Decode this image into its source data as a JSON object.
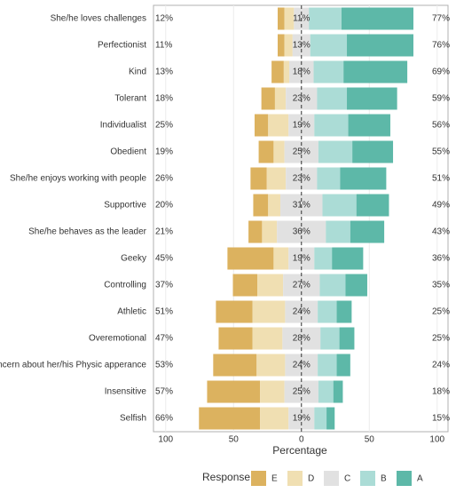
{
  "chart_data": {
    "type": "diverging_bar",
    "x_label": "Percentage",
    "legend_title": "Response",
    "categories": [
      "She/he loves challenges",
      "Perfectionist",
      "Kind",
      "Tolerant",
      "Individualist",
      "Obedient",
      "She/he enjoys working with people",
      "Supportive",
      "She/he behaves as the leader",
      "Geeky",
      "Controlling",
      "Athletic",
      "Overemotional",
      "Concern about her/his Physic apperance",
      "Insensitive",
      "Selfish"
    ],
    "series": [
      {
        "name": "E",
        "color": "#dcb25f",
        "values": [
          5,
          5,
          9,
          10,
          10,
          11,
          12,
          11,
          10,
          34,
          18,
          27,
          25,
          32,
          39,
          45
        ]
      },
      {
        "name": "D",
        "color": "#f0dfb2",
        "values": [
          7,
          6,
          4,
          8,
          15,
          8,
          14,
          9,
          11,
          11,
          19,
          24,
          22,
          21,
          18,
          21
        ]
      },
      {
        "name": "C",
        "color": "#e1e1e1",
        "values": [
          11,
          13,
          18,
          23,
          19,
          25,
          23,
          31,
          36,
          19,
          27,
          24,
          28,
          24,
          25,
          19
        ],
        "value_labels": [
          "11%",
          "13%",
          "18%",
          "23%",
          "19%",
          "25%",
          "23%",
          "31%",
          "36%",
          "19%",
          "27%",
          "24%",
          "28%",
          "24%",
          "25%",
          "19%"
        ]
      },
      {
        "name": "B",
        "color": "#abdcd6",
        "values": [
          24,
          27,
          22,
          22,
          25,
          25,
          17,
          25,
          18,
          13,
          19,
          14,
          14,
          14,
          11,
          9
        ]
      },
      {
        "name": "A",
        "color": "#5db8a8",
        "values": [
          53,
          49,
          47,
          37,
          31,
          30,
          34,
          24,
          25,
          23,
          16,
          11,
          11,
          10,
          7,
          6
        ]
      }
    ],
    "left_labels": [
      "12%",
      "11%",
      "13%",
      "18%",
      "25%",
      "19%",
      "26%",
      "20%",
      "21%",
      "45%",
      "37%",
      "51%",
      "47%",
      "53%",
      "57%",
      "66%"
    ],
    "right_labels": [
      "77%",
      "76%",
      "69%",
      "59%",
      "56%",
      "55%",
      "51%",
      "49%",
      "43%",
      "36%",
      "35%",
      "25%",
      "25%",
      "24%",
      "18%",
      "15%"
    ],
    "xlim": [
      -109,
      108
    ],
    "xticks": [
      {
        "value": -100,
        "label": "100"
      },
      {
        "value": -50,
        "label": "50"
      },
      0,
      50,
      100
    ],
    "grid": true
  }
}
